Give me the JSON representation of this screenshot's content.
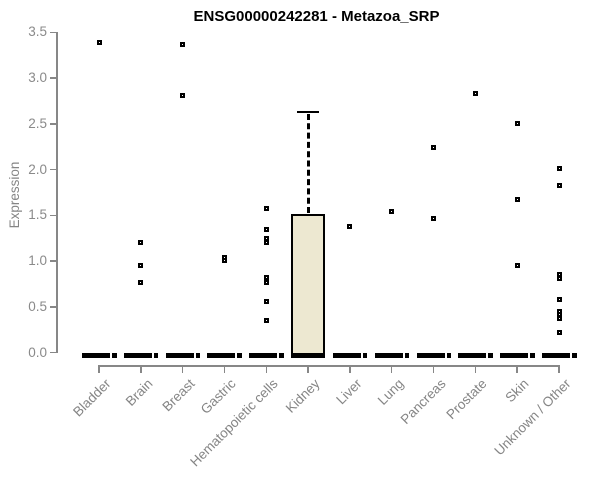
{
  "chart_data": {
    "type": "boxplot",
    "title": "ENSG00000242281 - Metazoa_SRP",
    "ylabel": "Expression",
    "xlabel": "",
    "ylim": [
      0,
      3.5
    ],
    "yticks": [
      0.0,
      0.5,
      1.0,
      1.5,
      2.0,
      2.5,
      3.0,
      3.5
    ],
    "grid": false,
    "legend": false,
    "categories": [
      "Bladder",
      "Brain",
      "Breast",
      "Gastric",
      "Hematopoietic cells",
      "Kidney",
      "Liver",
      "Lung",
      "Pancreas",
      "Prostate",
      "Skin",
      "Unknown / Other"
    ],
    "series": [
      {
        "name": "Bladder",
        "median": 0,
        "q1": 0,
        "q3": 0,
        "whisker_low": 0,
        "whisker_high": 0,
        "outliers": [
          3.39
        ]
      },
      {
        "name": "Brain",
        "median": 0,
        "q1": 0,
        "q3": 0,
        "whisker_low": 0,
        "whisker_high": 0,
        "outliers": [
          1.2,
          0.95,
          0.77
        ]
      },
      {
        "name": "Breast",
        "median": 0,
        "q1": 0,
        "q3": 0,
        "whisker_low": 0,
        "whisker_high": 0,
        "outliers": [
          3.37,
          2.81
        ]
      },
      {
        "name": "Gastric",
        "median": 0,
        "q1": 0,
        "q3": 0,
        "whisker_low": 0,
        "whisker_high": 0,
        "outliers": [
          1.04,
          1.01
        ]
      },
      {
        "name": "Hematopoietic cells",
        "median": 0,
        "q1": 0,
        "q3": 0,
        "whisker_low": 0,
        "whisker_high": 0,
        "outliers": [
          1.57,
          1.34,
          1.25,
          1.2,
          0.82,
          0.77,
          0.56,
          0.35
        ]
      },
      {
        "name": "Kidney",
        "median": 0,
        "q1": 0,
        "q3": 1.51,
        "whisker_low": 0,
        "whisker_high": 2.63,
        "outliers": []
      },
      {
        "name": "Liver",
        "median": 0,
        "q1": 0,
        "q3": 0,
        "whisker_low": 0,
        "whisker_high": 0,
        "outliers": [
          1.38
        ]
      },
      {
        "name": "Lung",
        "median": 0,
        "q1": 0,
        "q3": 0,
        "whisker_low": 0,
        "whisker_high": 0,
        "outliers": [
          1.54
        ]
      },
      {
        "name": "Pancreas",
        "median": 0,
        "q1": 0,
        "q3": 0,
        "whisker_low": 0,
        "whisker_high": 0,
        "outliers": [
          2.24,
          1.46
        ]
      },
      {
        "name": "Prostate",
        "median": 0,
        "q1": 0,
        "q3": 0,
        "whisker_low": 0,
        "whisker_high": 0,
        "outliers": [
          2.83
        ]
      },
      {
        "name": "Skin",
        "median": 0,
        "q1": 0,
        "q3": 0,
        "whisker_low": 0,
        "whisker_high": 0,
        "outliers": [
          2.5,
          1.67,
          0.95
        ]
      },
      {
        "name": "Unknown / Other",
        "median": 0,
        "q1": 0,
        "q3": 0,
        "whisker_low": 0,
        "whisker_high": 0,
        "outliers": [
          2.01,
          1.82,
          0.85,
          0.81,
          0.58,
          0.45,
          0.41,
          0.37,
          0.22
        ]
      }
    ],
    "colors": {
      "box_fill": "#EDE8D1",
      "box_stroke": "#000000",
      "outlier": "#000000",
      "axis": "#878787",
      "tick_text": "#8a8a8a",
      "title_text": "#000000"
    }
  }
}
